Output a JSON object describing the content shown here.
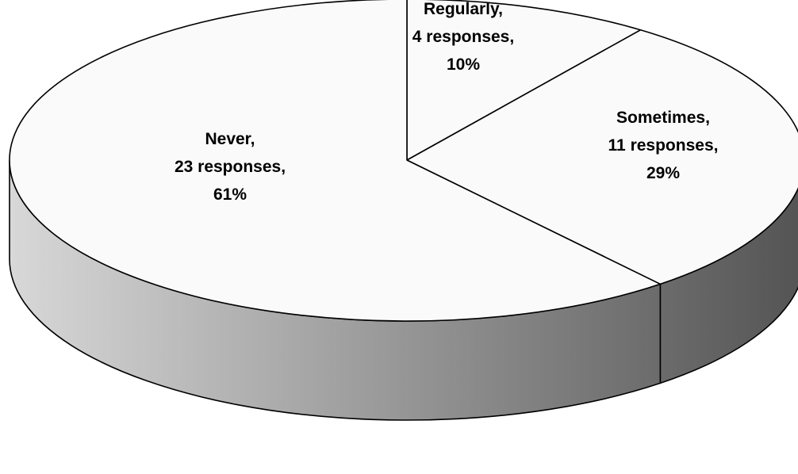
{
  "chart_data": {
    "type": "pie",
    "style": "3d",
    "unit": "responses",
    "slices": [
      {
        "category": "Regularly",
        "responses": 4,
        "percent": 10,
        "label_lines": [
          "Regularly,",
          "4 responses,",
          "10%"
        ]
      },
      {
        "category": "Sometimes",
        "responses": 11,
        "percent": 29,
        "label_lines": [
          "Sometimes,",
          "11 responses,",
          "29%"
        ]
      },
      {
        "category": "Never",
        "responses": 23,
        "percent": 61,
        "label_lines": [
          "Never,",
          "23 responses,",
          "61%"
        ]
      }
    ],
    "legend": "none",
    "colors": {
      "top_face": "#fafafa",
      "outline": "#000000",
      "side_light": "#d8d8d8",
      "side_dark": "#555555"
    }
  }
}
